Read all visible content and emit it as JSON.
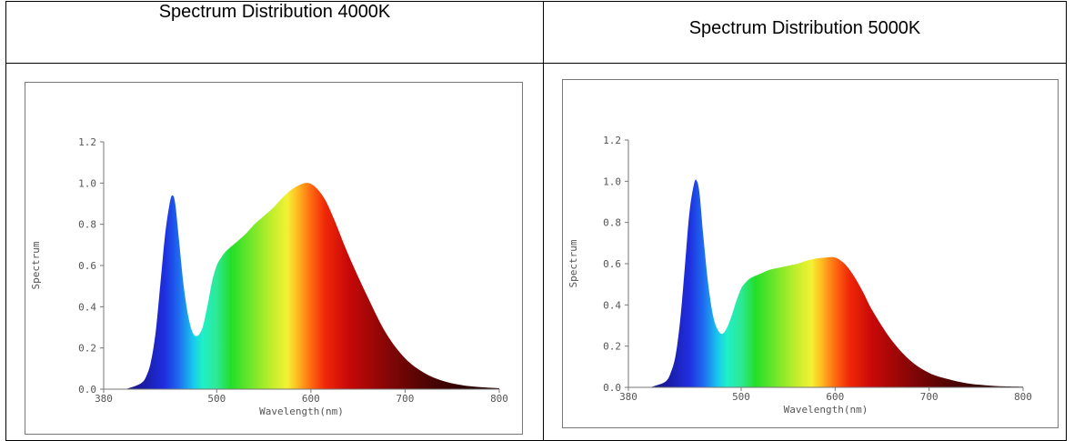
{
  "headers": {
    "left": "Spectrum Distribution 4000K",
    "right": "Spectrum Distribution 5000K"
  },
  "chart_data": [
    {
      "type": "area",
      "title": "Spectrum Distribution 4000K",
      "xlabel": "Wavelength(nm)",
      "ylabel": "Spectrum",
      "xlim": [
        380,
        800
      ],
      "ylim": [
        0,
        1.2
      ],
      "xticks": [
        "380",
        "500",
        "600",
        "700",
        "800"
      ],
      "yticks": [
        "0.0",
        "0.2",
        "0.4",
        "0.6",
        "0.8",
        "1.0",
        "1.2"
      ],
      "fill": "visible-spectrum gradient",
      "grid": false,
      "x": [
        380,
        400,
        410,
        420,
        425,
        430,
        435,
        440,
        445,
        450,
        453,
        456,
        460,
        465,
        470,
        475,
        480,
        485,
        490,
        495,
        500,
        505,
        510,
        520,
        530,
        540,
        550,
        560,
        570,
        580,
        590,
        597,
        605,
        615,
        625,
        640,
        660,
        680,
        700,
        720,
        740,
        760,
        780,
        800
      ],
      "y": [
        0.0,
        0.0,
        0.01,
        0.03,
        0.06,
        0.13,
        0.27,
        0.5,
        0.74,
        0.9,
        0.94,
        0.9,
        0.72,
        0.5,
        0.35,
        0.27,
        0.26,
        0.3,
        0.4,
        0.52,
        0.6,
        0.64,
        0.67,
        0.71,
        0.75,
        0.8,
        0.84,
        0.88,
        0.93,
        0.97,
        0.995,
        1.0,
        0.98,
        0.92,
        0.82,
        0.65,
        0.45,
        0.27,
        0.15,
        0.08,
        0.04,
        0.02,
        0.01,
        0.005
      ]
    },
    {
      "type": "area",
      "title": "Spectrum Distribution 5000K",
      "xlabel": "Wavelength(nm)",
      "ylabel": "Spectrum",
      "xlim": [
        380,
        800
      ],
      "ylim": [
        0,
        1.2
      ],
      "xticks": [
        "380",
        "500",
        "600",
        "700",
        "800"
      ],
      "yticks": [
        "0.0",
        "0.2",
        "0.4",
        "0.6",
        "0.8",
        "1.0",
        "1.2"
      ],
      "fill": "visible-spectrum gradient",
      "grid": false,
      "x": [
        380,
        400,
        410,
        420,
        425,
        430,
        435,
        440,
        445,
        450,
        453,
        456,
        460,
        465,
        470,
        475,
        480,
        485,
        490,
        495,
        500,
        505,
        510,
        520,
        530,
        540,
        550,
        560,
        570,
        580,
        590,
        600,
        610,
        620,
        630,
        640,
        660,
        680,
        700,
        720,
        740,
        760,
        780,
        800
      ],
      "y": [
        0.0,
        0.0,
        0.01,
        0.03,
        0.07,
        0.15,
        0.32,
        0.58,
        0.85,
        0.99,
        1.0,
        0.93,
        0.72,
        0.5,
        0.35,
        0.28,
        0.26,
        0.29,
        0.35,
        0.42,
        0.48,
        0.51,
        0.53,
        0.55,
        0.57,
        0.58,
        0.59,
        0.6,
        0.615,
        0.625,
        0.63,
        0.63,
        0.6,
        0.54,
        0.46,
        0.37,
        0.23,
        0.13,
        0.07,
        0.04,
        0.02,
        0.01,
        0.005,
        0.003
      ]
    }
  ]
}
